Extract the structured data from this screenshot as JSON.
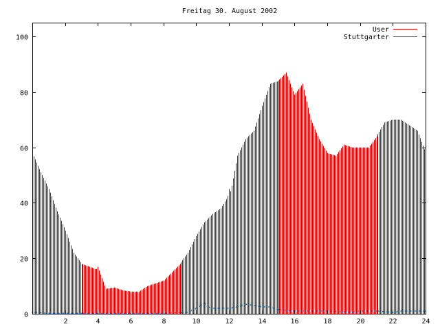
{
  "chart_data": {
    "type": "bar",
    "title": "Freitag 30. August 2002",
    "xlabel": "",
    "ylabel": "",
    "xlim": [
      0,
      24
    ],
    "ylim": [
      0,
      105
    ],
    "grid": false,
    "legend_position": "top-right",
    "x_ticks": [
      2,
      4,
      6,
      8,
      10,
      12,
      14,
      16,
      18,
      20,
      22,
      24
    ],
    "x_tick_labels": [
      "2",
      "4",
      "6",
      "8",
      "10",
      "12",
      "14",
      "16",
      "18",
      "20",
      "22",
      "24"
    ],
    "y_ticks": [
      0,
      20,
      40,
      60,
      80,
      100
    ],
    "y_tick_labels": [
      "0",
      "20",
      "40",
      "60",
      "80",
      "100"
    ],
    "series": [
      {
        "name": "User",
        "color": "#cc0000",
        "style": "impulses",
        "points": [
          [
            0,
            58
          ],
          [
            0.5,
            51
          ],
          [
            1,
            45
          ],
          [
            1.5,
            37
          ],
          [
            2,
            30
          ],
          [
            2.5,
            22
          ],
          [
            3,
            18
          ],
          [
            3.5,
            17
          ],
          [
            3.9,
            16
          ],
          [
            4,
            17
          ],
          [
            4.3,
            12
          ],
          [
            4.5,
            9
          ],
          [
            5,
            9.5
          ],
          [
            5.5,
            8.5
          ],
          [
            6,
            8
          ],
          [
            6.5,
            8
          ],
          [
            7,
            10
          ],
          [
            7.5,
            11
          ],
          [
            8,
            12
          ],
          [
            8.5,
            15
          ],
          [
            9,
            18
          ],
          [
            9.5,
            22
          ],
          [
            10,
            28
          ],
          [
            10.5,
            33
          ],
          [
            11,
            36
          ],
          [
            11.5,
            38
          ],
          [
            11.9,
            42
          ],
          [
            12,
            45
          ],
          [
            12.1,
            44
          ],
          [
            12.5,
            57
          ],
          [
            13,
            63
          ],
          [
            13.5,
            66
          ],
          [
            14,
            75
          ],
          [
            14.5,
            83
          ],
          [
            15,
            84
          ],
          [
            15.5,
            87
          ],
          [
            16,
            79
          ],
          [
            16.5,
            83
          ],
          [
            17,
            70
          ],
          [
            17.5,
            63
          ],
          [
            18,
            58
          ],
          [
            18.5,
            57
          ],
          [
            19,
            61
          ],
          [
            19.5,
            60
          ],
          [
            20,
            60
          ],
          [
            20.5,
            60
          ],
          [
            21,
            64
          ],
          [
            21.5,
            69
          ],
          [
            22,
            70
          ],
          [
            22.5,
            70
          ],
          [
            23,
            68
          ],
          [
            23.5,
            66
          ],
          [
            24,
            58
          ]
        ]
      },
      {
        "name": "Stuttgarter",
        "color": "#0066cc",
        "style": "dots",
        "points": [
          [
            0,
            0.5
          ],
          [
            0.3,
            0.5
          ],
          [
            0.6,
            0.3
          ],
          [
            1,
            0.2
          ],
          [
            4,
            0.2
          ],
          [
            8,
            0.2
          ],
          [
            9.5,
            0.5
          ],
          [
            10,
            2
          ],
          [
            10.3,
            3
          ],
          [
            10.5,
            4
          ],
          [
            10.7,
            2.5
          ],
          [
            11,
            2
          ],
          [
            12,
            2
          ],
          [
            12.5,
            2.5
          ],
          [
            13,
            3.5
          ],
          [
            13.5,
            3
          ],
          [
            14,
            2.5
          ],
          [
            14.5,
            2.5
          ],
          [
            15,
            1.5
          ],
          [
            16,
            1
          ],
          [
            18,
            1
          ],
          [
            19.5,
            0.5
          ],
          [
            20,
            1
          ],
          [
            21,
            1
          ],
          [
            22,
            0.5
          ],
          [
            22.5,
            1
          ],
          [
            23,
            1
          ],
          [
            24,
            1
          ]
        ]
      }
    ]
  }
}
